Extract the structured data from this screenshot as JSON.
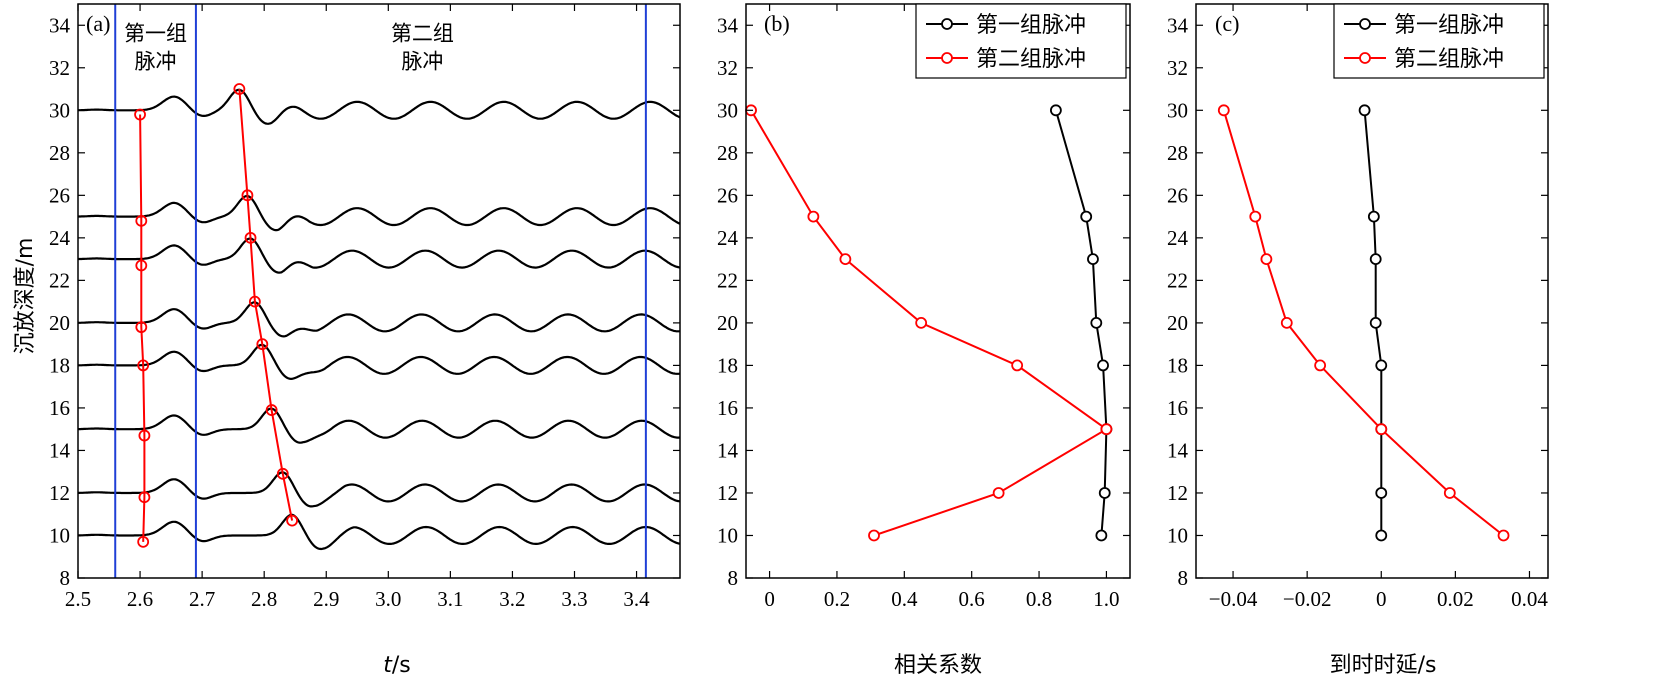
{
  "colors": {
    "black": "#000000",
    "red": "#ff0000",
    "blue": "#1f3fd6"
  },
  "chart_data": [
    {
      "type": "line",
      "panel": "(a)",
      "xlabel_italic": "t",
      "xlabel_unit": "/s",
      "ylabel": "沉放深度/m",
      "xlim": [
        2.5,
        3.47
      ],
      "ylim": [
        8,
        35
      ],
      "xticks": [
        "2.5",
        "2.6",
        "2.7",
        "2.8",
        "2.9",
        "3.0",
        "3.1",
        "3.2",
        "3.3",
        "3.4"
      ],
      "yticks": [
        "8",
        "10",
        "12",
        "14",
        "16",
        "18",
        "20",
        "22",
        "24",
        "26",
        "28",
        "30",
        "32",
        "34"
      ],
      "window_lines": [
        2.56,
        2.69,
        3.415
      ],
      "annotations": [
        {
          "lines": [
            "第一组",
            "脉冲"
          ],
          "x": 2.625,
          "y": 33.0
        },
        {
          "lines": [
            "第二组",
            "脉冲"
          ],
          "x": 3.055,
          "y": 33.0
        }
      ],
      "traces": [
        {
          "depth": 30,
          "pulse1": [
            2.6,
            29.8
          ],
          "pulse2": [
            2.76,
            31.0
          ]
        },
        {
          "depth": 25,
          "pulse1": [
            2.602,
            24.8
          ],
          "pulse2": [
            2.773,
            26.0
          ]
        },
        {
          "depth": 23,
          "pulse1": [
            2.602,
            22.7
          ],
          "pulse2": [
            2.778,
            24.0
          ]
        },
        {
          "depth": 20,
          "pulse1": [
            2.602,
            19.8
          ],
          "pulse2": [
            2.785,
            21.0
          ]
        },
        {
          "depth": 18,
          "pulse1": [
            2.605,
            18.0
          ],
          "pulse2": [
            2.797,
            19.0
          ]
        },
        {
          "depth": 15,
          "pulse1": [
            2.607,
            14.7
          ],
          "pulse2": [
            2.812,
            15.9
          ]
        },
        {
          "depth": 12,
          "pulse1": [
            2.607,
            11.8
          ],
          "pulse2": [
            2.83,
            12.9
          ]
        },
        {
          "depth": 10,
          "pulse1": [
            2.605,
            9.7
          ],
          "pulse2": [
            2.845,
            10.7
          ]
        }
      ]
    },
    {
      "type": "line",
      "panel": "(b)",
      "xlabel": "相关系数",
      "xlim": [
        -0.07,
        1.07
      ],
      "ylim": [
        8,
        35
      ],
      "xticks": [
        [
          "0",
          0
        ],
        [
          "0.2",
          0.2
        ],
        [
          "0.4",
          0.4
        ],
        [
          "0.6",
          0.6
        ],
        [
          "0.8",
          0.8
        ],
        [
          "1.0",
          1.0
        ]
      ],
      "yticks": [
        "8",
        "10",
        "12",
        "14",
        "16",
        "18",
        "20",
        "22",
        "24",
        "26",
        "28",
        "30",
        "32",
        "34"
      ],
      "legend": "top-right",
      "series": [
        {
          "name": "第一组脉冲",
          "color": "#000000",
          "points": [
            [
              0.85,
              30
            ],
            [
              0.94,
              25
            ],
            [
              0.96,
              23
            ],
            [
              0.97,
              20
            ],
            [
              0.99,
              18
            ],
            [
              1.0,
              15
            ],
            [
              0.995,
              12
            ],
            [
              0.985,
              10
            ]
          ]
        },
        {
          "name": "第二组脉冲",
          "color": "#ff0000",
          "points": [
            [
              -0.055,
              30
            ],
            [
              0.13,
              25
            ],
            [
              0.225,
              23
            ],
            [
              0.45,
              20
            ],
            [
              0.735,
              18
            ],
            [
              1.0,
              15
            ],
            [
              0.68,
              12
            ],
            [
              0.31,
              10
            ]
          ]
        }
      ]
    },
    {
      "type": "line",
      "panel": "(c)",
      "xlabel": "到时时延/s",
      "xlim": [
        -0.05,
        0.045
      ],
      "ylim": [
        8,
        35
      ],
      "xticks": [
        [
          "−0.04",
          -0.04
        ],
        [
          "−0.02",
          -0.02
        ],
        [
          "0",
          0
        ],
        [
          "0.02",
          0.02
        ],
        [
          "0.04",
          0.04
        ]
      ],
      "yticks": [
        "8",
        "10",
        "12",
        "14",
        "16",
        "18",
        "20",
        "22",
        "24",
        "26",
        "28",
        "30",
        "32",
        "34"
      ],
      "legend": "top-right",
      "series": [
        {
          "name": "第一组脉冲",
          "color": "#000000",
          "points": [
            [
              -0.0045,
              30
            ],
            [
              -0.002,
              25
            ],
            [
              -0.0015,
              23
            ],
            [
              -0.0015,
              20
            ],
            [
              0.0,
              18
            ],
            [
              0.0,
              15
            ],
            [
              0.0,
              12
            ],
            [
              0.0,
              10
            ]
          ]
        },
        {
          "name": "第二组脉冲",
          "color": "#ff0000",
          "points": [
            [
              -0.0425,
              30
            ],
            [
              -0.034,
              25
            ],
            [
              -0.031,
              23
            ],
            [
              -0.0255,
              20
            ],
            [
              -0.0165,
              18
            ],
            [
              0.0,
              15
            ],
            [
              0.0185,
              12
            ],
            [
              0.033,
              10
            ]
          ]
        }
      ]
    }
  ]
}
